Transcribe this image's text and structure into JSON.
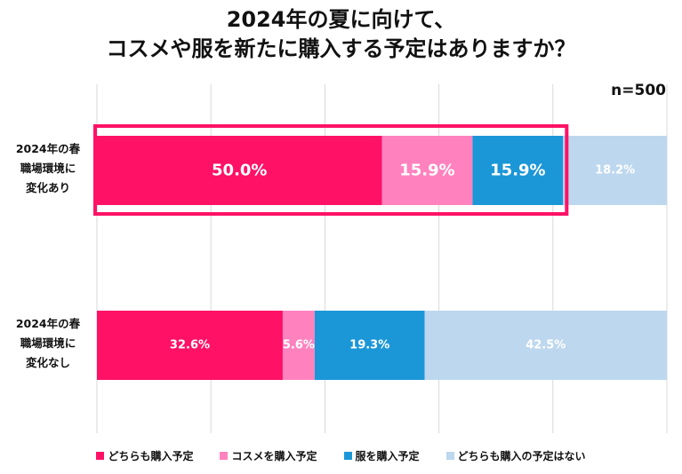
{
  "title_lines": [
    "2024年の夏に向けて、",
    "コスメや服を新たに購入する予定はありますか？"
  ],
  "sample_size": "n=500",
  "chart_data": {
    "type": "bar",
    "orientation": "horizontal",
    "stacked": true,
    "categories": [
      "2024年の春\n職場環境に\n変化あり",
      "2024年の春\n職場環境に\n変化なし"
    ],
    "category_lines": [
      [
        "2024年の春",
        "職場環境に",
        "変化あり"
      ],
      [
        "2024年の春",
        "職場環境に",
        "変化なし"
      ]
    ],
    "series": [
      {
        "name": "どちらも購入予定",
        "values": [
          50.0,
          32.6
        ],
        "labels": [
          "50.0%",
          "32.6%"
        ]
      },
      {
        "name": "コスメを購入予定",
        "values": [
          15.9,
          5.6
        ],
        "labels": [
          "15.9%",
          "5.6%"
        ]
      },
      {
        "name": "服を購入予定",
        "values": [
          15.9,
          19.3
        ],
        "labels": [
          "15.9%",
          "19.3%"
        ]
      },
      {
        "name": "どちらも購入の予定はない",
        "values": [
          18.2,
          42.5
        ],
        "labels": [
          "18.2%",
          "42.5%"
        ]
      }
    ],
    "colors": [
      "#ff1166",
      "#ff82bf",
      "#1b97d8",
      "#bdd7ee"
    ],
    "label_colors": [
      "#ffffff",
      "#ffffff",
      "#ffffff",
      "#ffffff"
    ],
    "xlim": [
      0,
      100
    ],
    "grid": true,
    "legend_position": "bottom",
    "highlight": {
      "category_index": 0,
      "series_range": [
        0,
        2
      ],
      "color": "#ff1166"
    }
  }
}
